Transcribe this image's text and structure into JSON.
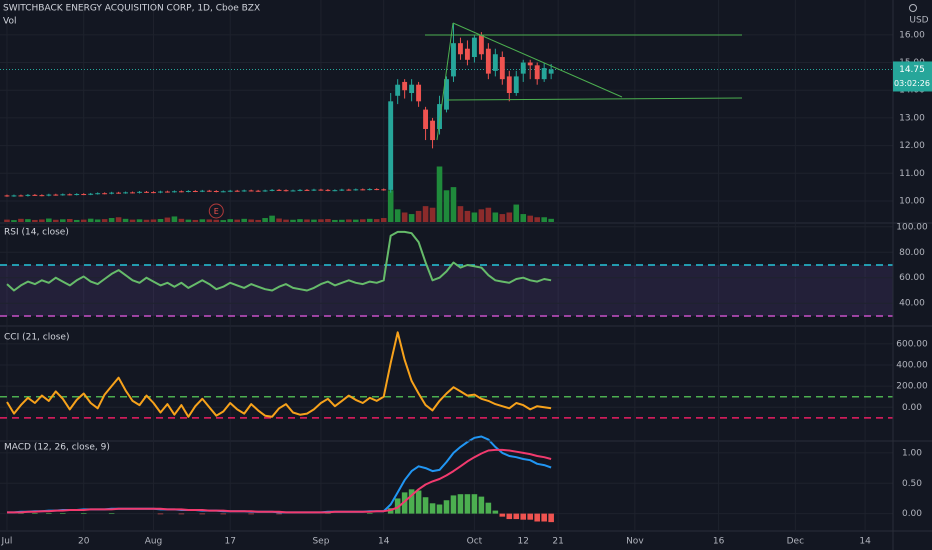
{
  "chart_data": [
    {
      "type": "candlestick",
      "title": "SWITCHBACK ENERGY ACQUISITION CORP, 1D, Cboe BZX",
      "currency": "USD",
      "up_color": "#26a69a",
      "down_color": "#ef5350",
      "ohlc": [
        [
          10.2,
          10.23,
          10.15,
          10.18
        ],
        [
          10.18,
          10.23,
          10.15,
          10.2
        ],
        [
          10.2,
          10.23,
          10.16,
          10.19
        ],
        [
          10.19,
          10.25,
          10.16,
          10.22
        ],
        [
          10.22,
          10.25,
          10.18,
          10.21
        ],
        [
          10.21,
          10.24,
          10.17,
          10.2
        ],
        [
          10.2,
          10.26,
          10.17,
          10.23
        ],
        [
          10.23,
          10.26,
          10.19,
          10.22
        ],
        [
          10.22,
          10.27,
          10.19,
          10.24
        ],
        [
          10.24,
          10.27,
          10.2,
          10.23
        ],
        [
          10.23,
          10.28,
          10.2,
          10.25
        ],
        [
          10.25,
          10.28,
          10.21,
          10.24
        ],
        [
          10.24,
          10.29,
          10.21,
          10.26
        ],
        [
          10.26,
          10.31,
          10.23,
          10.28
        ],
        [
          10.28,
          10.31,
          10.24,
          10.27
        ],
        [
          10.27,
          10.33,
          10.24,
          10.3
        ],
        [
          10.3,
          10.33,
          10.26,
          10.29
        ],
        [
          10.29,
          10.34,
          10.26,
          10.31
        ],
        [
          10.31,
          10.34,
          10.27,
          10.3
        ],
        [
          10.3,
          10.36,
          10.27,
          10.33
        ],
        [
          10.33,
          10.36,
          10.29,
          10.32
        ],
        [
          10.32,
          10.35,
          10.28,
          10.31
        ],
        [
          10.31,
          10.37,
          10.28,
          10.34
        ],
        [
          10.34,
          10.37,
          10.3,
          10.33
        ],
        [
          10.33,
          10.38,
          10.3,
          10.35
        ],
        [
          10.35,
          10.38,
          10.31,
          10.34
        ],
        [
          10.34,
          10.39,
          10.31,
          10.36
        ],
        [
          10.36,
          10.39,
          10.32,
          10.35
        ],
        [
          10.35,
          10.4,
          10.32,
          10.37
        ],
        [
          10.37,
          10.4,
          10.33,
          10.36
        ],
        [
          10.36,
          10.39,
          10.31,
          10.34
        ],
        [
          10.34,
          10.38,
          10.31,
          10.35
        ],
        [
          10.35,
          10.4,
          10.32,
          10.37
        ],
        [
          10.37,
          10.4,
          10.33,
          10.36
        ],
        [
          10.36,
          10.41,
          10.33,
          10.38
        ],
        [
          10.38,
          10.41,
          10.34,
          10.37
        ],
        [
          10.37,
          10.4,
          10.33,
          10.36
        ],
        [
          10.36,
          10.41,
          10.33,
          10.38
        ],
        [
          10.38,
          10.43,
          10.35,
          10.4
        ],
        [
          10.4,
          10.43,
          10.36,
          10.39
        ],
        [
          10.39,
          10.42,
          10.34,
          10.37
        ],
        [
          10.37,
          10.41,
          10.34,
          10.38
        ],
        [
          10.38,
          10.43,
          10.35,
          10.4
        ],
        [
          10.4,
          10.43,
          10.36,
          10.39
        ],
        [
          10.39,
          10.44,
          10.36,
          10.41
        ],
        [
          10.41,
          10.44,
          10.37,
          10.4
        ],
        [
          10.4,
          10.43,
          10.35,
          10.38
        ],
        [
          10.38,
          10.42,
          10.35,
          10.39
        ],
        [
          10.39,
          10.44,
          10.36,
          10.41
        ],
        [
          10.41,
          10.44,
          10.37,
          10.4
        ],
        [
          10.4,
          10.45,
          10.37,
          10.42
        ],
        [
          10.42,
          10.45,
          10.38,
          10.41
        ],
        [
          10.41,
          10.46,
          10.38,
          10.43
        ],
        [
          10.43,
          10.46,
          10.39,
          10.42
        ],
        [
          10.42,
          10.45,
          10.37,
          10.4
        ],
        [
          10.4,
          13.9,
          10.3,
          13.6
        ],
        [
          13.8,
          14.4,
          13.5,
          14.2
        ],
        [
          14.3,
          14.4,
          13.7,
          14.0
        ],
        [
          13.9,
          14.4,
          13.6,
          14.2
        ],
        [
          14.2,
          14.3,
          13.4,
          13.6
        ],
        [
          13.3,
          13.4,
          12.2,
          12.6
        ],
        [
          12.9,
          13.0,
          11.9,
          12.2
        ],
        [
          12.6,
          13.8,
          12.4,
          13.5
        ],
        [
          13.3,
          14.5,
          13.2,
          14.4
        ],
        [
          14.5,
          16.4,
          14.3,
          15.7
        ],
        [
          15.7,
          15.9,
          15.1,
          15.3
        ],
        [
          15.5,
          15.8,
          14.9,
          15.1
        ],
        [
          15.2,
          16.0,
          15.0,
          15.9
        ],
        [
          16.0,
          16.1,
          15.1,
          15.3
        ],
        [
          15.5,
          15.7,
          14.4,
          14.6
        ],
        [
          14.7,
          15.5,
          14.5,
          15.3
        ],
        [
          15.2,
          15.4,
          14.2,
          14.4
        ],
        [
          14.5,
          14.7,
          13.6,
          13.9
        ],
        [
          13.9,
          14.7,
          13.8,
          14.5
        ],
        [
          14.6,
          15.1,
          14.3,
          15.0
        ],
        [
          15.0,
          15.1,
          14.4,
          14.9
        ],
        [
          14.9,
          15.0,
          14.2,
          14.4
        ],
        [
          14.4,
          15.0,
          14.3,
          14.8
        ],
        [
          14.6,
          14.95,
          14.4,
          14.75
        ]
      ],
      "volume": {
        "name": "Vol",
        "axis": "y2",
        "up_color": "#1f8a3b",
        "down_color": "#8c2b2b",
        "values": [
          150000,
          120000,
          200000,
          180000,
          130000,
          160000,
          220000,
          140000,
          170000,
          190000,
          130000,
          150000,
          210000,
          160000,
          180000,
          250000,
          300000,
          200000,
          150000,
          170000,
          140000,
          160000,
          190000,
          280000,
          350000,
          200000,
          150000,
          130000,
          170000,
          160000,
          140000,
          120000,
          180000,
          150000,
          200000,
          160000,
          130000,
          250000,
          400000,
          220000,
          150000,
          140000,
          180000,
          160000,
          150000,
          170000,
          190000,
          130000,
          140000,
          160000,
          150000,
          170000,
          200000,
          180000,
          250000,
          2000000,
          800000,
          600000,
          500000,
          700000,
          1000000,
          900000,
          3500000,
          2000000,
          2200000,
          1000000,
          700000,
          600000,
          800000,
          900000,
          600000,
          500000,
          600000,
          1100000,
          500000,
          400000,
          300000,
          300000,
          200000
        ]
      },
      "ylim": [
        9.24,
        17.26
      ],
      "yticks": [
        {
          "value": 10,
          "label": "10.00"
        },
        {
          "value": 11,
          "label": "11.00"
        },
        {
          "value": 12,
          "label": "12.00"
        },
        {
          "value": 13,
          "label": "13.00"
        },
        {
          "value": 14,
          "label": "14.00"
        },
        {
          "value": 15,
          "label": "15.00"
        },
        {
          "value": 16,
          "label": "16.00"
        }
      ],
      "y2lim": [
        0,
        14000000
      ],
      "last_price": 14.75,
      "countdown": "03:02:26",
      "events": [
        {
          "label": "E",
          "x": 30
        }
      ]
    },
    {
      "type": "line",
      "title": "RSI (14, close)",
      "color": "#66bb6a",
      "band_color": "#7e57c2",
      "values": [
        55,
        50,
        54,
        57,
        55,
        58,
        56,
        60,
        57,
        54,
        58,
        61,
        57,
        55,
        59,
        63,
        66,
        62,
        58,
        56,
        60,
        57,
        54,
        56,
        53,
        56,
        52,
        55,
        58,
        55,
        51,
        53,
        56,
        54,
        52,
        55,
        53,
        51,
        50,
        53,
        55,
        52,
        51,
        50,
        52,
        55,
        57,
        54,
        56,
        58,
        56,
        55,
        57,
        56,
        58,
        93,
        96,
        96,
        95,
        88,
        72,
        58,
        60,
        65,
        72,
        68,
        70,
        69,
        68,
        62,
        58,
        57,
        56,
        59,
        60,
        58,
        57,
        59,
        58
      ],
      "levels": [
        {
          "value": 70,
          "color": "#26c6da"
        },
        {
          "value": 30,
          "color": "#c850c8"
        }
      ],
      "ylim": [
        22.9,
        102.2
      ],
      "yticks": [
        {
          "value": 40,
          "label": "40.00"
        },
        {
          "value": 60,
          "label": "60.00"
        },
        {
          "value": 80,
          "label": "80.00"
        },
        {
          "value": 100,
          "label": "100.00"
        }
      ]
    },
    {
      "type": "line",
      "title": "CCI (21, close)",
      "color": "#f7a21b",
      "values": [
        50,
        -60,
        20,
        90,
        40,
        110,
        60,
        150,
        80,
        -20,
        70,
        130,
        40,
        -10,
        120,
        200,
        280,
        160,
        60,
        20,
        110,
        40,
        -50,
        30,
        -70,
        20,
        -90,
        10,
        80,
        0,
        -80,
        -40,
        40,
        -20,
        -60,
        30,
        -30,
        -80,
        -90,
        -10,
        30,
        -50,
        -70,
        -60,
        -20,
        40,
        80,
        10,
        60,
        110,
        70,
        40,
        90,
        60,
        100,
        420,
        710,
        450,
        250,
        130,
        20,
        -30,
        60,
        130,
        190,
        150,
        110,
        120,
        80,
        60,
        30,
        10,
        -10,
        40,
        20,
        -20,
        10,
        0,
        -10
      ],
      "levels": [
        {
          "value": 100,
          "color": "#4caf50"
        },
        {
          "value": -100,
          "color": "#e91e63"
        }
      ],
      "ylim": [
        -310,
        760
      ],
      "yticks": [
        {
          "value": 0,
          "label": "0.00"
        },
        {
          "value": 200,
          "label": "200.00"
        },
        {
          "value": 400,
          "label": "400.00"
        },
        {
          "value": 600,
          "label": "600.00"
        }
      ]
    },
    {
      "type": "macd",
      "title": "MACD (12, 26, close, 9)",
      "series": [
        {
          "color": "#2196f3",
          "values": [
            0.02,
            0.02,
            0.03,
            0.03,
            0.04,
            0.04,
            0.05,
            0.05,
            0.06,
            0.06,
            0.06,
            0.07,
            0.07,
            0.07,
            0.07,
            0.08,
            0.08,
            0.08,
            0.08,
            0.08,
            0.08,
            0.08,
            0.07,
            0.07,
            0.07,
            0.06,
            0.06,
            0.06,
            0.05,
            0.05,
            0.05,
            0.04,
            0.04,
            0.04,
            0.04,
            0.03,
            0.03,
            0.03,
            0.03,
            0.02,
            0.02,
            0.02,
            0.02,
            0.02,
            0.02,
            0.02,
            0.03,
            0.03,
            0.03,
            0.03,
            0.03,
            0.03,
            0.04,
            0.04,
            0.04,
            0.15,
            0.35,
            0.55,
            0.7,
            0.78,
            0.75,
            0.7,
            0.72,
            0.85,
            1.0,
            1.1,
            1.18,
            1.25,
            1.27,
            1.22,
            1.1,
            1.0,
            0.95,
            0.93,
            0.9,
            0.88,
            0.82,
            0.8,
            0.76
          ]
        },
        {
          "color": "#f23a6e",
          "values": [
            0.02,
            0.02,
            0.02,
            0.03,
            0.03,
            0.04,
            0.04,
            0.05,
            0.05,
            0.06,
            0.06,
            0.06,
            0.07,
            0.07,
            0.07,
            0.07,
            0.08,
            0.08,
            0.08,
            0.08,
            0.08,
            0.08,
            0.08,
            0.07,
            0.07,
            0.07,
            0.06,
            0.06,
            0.06,
            0.05,
            0.05,
            0.05,
            0.04,
            0.04,
            0.04,
            0.04,
            0.03,
            0.03,
            0.03,
            0.03,
            0.02,
            0.02,
            0.02,
            0.02,
            0.02,
            0.02,
            0.02,
            0.03,
            0.03,
            0.03,
            0.03,
            0.03,
            0.03,
            0.04,
            0.04,
            0.06,
            0.1,
            0.2,
            0.3,
            0.4,
            0.48,
            0.53,
            0.57,
            0.63,
            0.7,
            0.78,
            0.86,
            0.93,
            0.99,
            1.04,
            1.05,
            1.05,
            1.04,
            1.02,
            1.0,
            0.98,
            0.95,
            0.93,
            0.9
          ]
        }
      ],
      "histogram": {
        "up_color": "#4caf50",
        "down_color": "#ef5350",
        "values": [
          0,
          0,
          0.01,
          0,
          0.01,
          0,
          0.01,
          0,
          0.01,
          0,
          0,
          0.01,
          0,
          0,
          0,
          0.01,
          0,
          0,
          0,
          0,
          0,
          0,
          -0.01,
          0,
          0,
          -0.01,
          0,
          0,
          -0.01,
          0,
          0,
          -0.01,
          0,
          0,
          0,
          -0.01,
          0,
          0,
          0,
          -0.01,
          0,
          0,
          0,
          0,
          0,
          0,
          0.01,
          0,
          0,
          0,
          0,
          0,
          0.01,
          0,
          0,
          0.09,
          0.25,
          0.35,
          0.4,
          0.38,
          0.27,
          0.17,
          0.15,
          0.22,
          0.3,
          0.32,
          0.32,
          0.32,
          0.28,
          0.18,
          0.05,
          -0.05,
          -0.09,
          -0.09,
          -0.1,
          -0.1,
          -0.13,
          -0.13,
          -0.14
        ]
      },
      "ylim": [
        -0.27,
        1.18
      ],
      "yticks": [
        {
          "value": 0,
          "label": "0.00"
        },
        {
          "value": 0.5,
          "label": "0.50"
        },
        {
          "value": 1,
          "label": "1.00"
        }
      ]
    }
  ],
  "x_axis": {
    "xlim": [
      -1,
      127
    ],
    "xticks": [
      {
        "value": 0,
        "label": "Jul"
      },
      {
        "value": 11,
        "label": "20"
      },
      {
        "value": 21,
        "label": "Aug"
      },
      {
        "value": 32,
        "label": "17"
      },
      {
        "value": 45,
        "label": "Sep"
      },
      {
        "value": 54,
        "label": "14"
      },
      {
        "value": 67,
        "label": "Oct"
      },
      {
        "value": 74,
        "label": "12"
      },
      {
        "value": 79,
        "label": "21"
      },
      {
        "value": 90,
        "label": "Nov"
      },
      {
        "value": 102,
        "label": "16"
      },
      {
        "value": 113,
        "label": "Dec"
      },
      {
        "value": 123,
        "label": "14"
      }
    ]
  }
}
